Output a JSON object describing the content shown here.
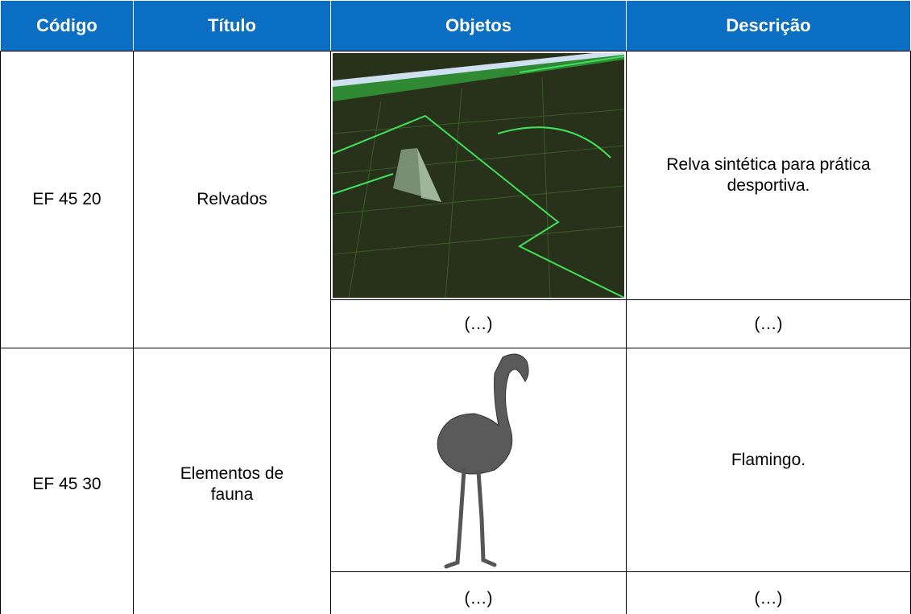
{
  "table": {
    "header": [
      "Código",
      "Título",
      "Objetos",
      "Descrição"
    ],
    "rows": [
      {
        "codigo": "EF 45 20",
        "titulo": "Relvados",
        "descricao": "Relva sintética para prática desportiva.",
        "continuation": [
          "(…)",
          "(…)"
        ]
      },
      {
        "codigo": "EF 45 30",
        "titulo": "Elementos de fauna",
        "descricao": "Flamingo.",
        "continuation": [
          "(…)",
          "(…)"
        ]
      }
    ]
  }
}
